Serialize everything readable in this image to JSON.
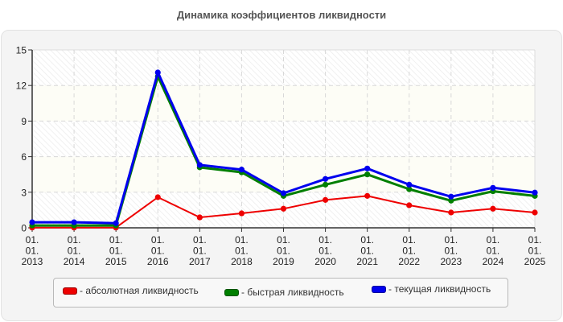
{
  "title": "Динамика коэффициентов ликвидности",
  "legend": {
    "items": [
      {
        "label": "- абсолютная ликвидность",
        "color": "#ee0000"
      },
      {
        "label": "- быстрая ликвидность",
        "color": "#007f00"
      },
      {
        "label": "- текущая ликвидность",
        "color": "#0000ee"
      }
    ]
  },
  "chart_data": {
    "type": "line",
    "title": "Динамика коэффициентов ликвидности",
    "xlabel": "",
    "ylabel": "",
    "ylim": [
      0,
      15
    ],
    "yticks": [
      0,
      3,
      6,
      9,
      12,
      15
    ],
    "grid": true,
    "legend_position": "bottom",
    "categories": [
      "01.01.2013",
      "01.01.2014",
      "01.01.2015",
      "01.01.2016",
      "01.01.2017",
      "01.01.2018",
      "01.01.2019",
      "01.01.2020",
      "01.01.2021",
      "01.01.2022",
      "01.01.2023",
      "01.01.2024",
      "01.01.2025"
    ],
    "category_lines": [
      [
        "01.",
        "01.",
        "2013"
      ],
      [
        "01.",
        "01.",
        "2014"
      ],
      [
        "01.",
        "01.",
        "2015"
      ],
      [
        "01.",
        "01.",
        "2016"
      ],
      [
        "01.",
        "01.",
        "2017"
      ],
      [
        "01.",
        "01.",
        "2018"
      ],
      [
        "01.",
        "01.",
        "2019"
      ],
      [
        "01.",
        "01.",
        "2020"
      ],
      [
        "01.",
        "01.",
        "2021"
      ],
      [
        "01.",
        "01.",
        "2022"
      ],
      [
        "01.",
        "01.",
        "2023"
      ],
      [
        "01.",
        "01.",
        "2024"
      ],
      [
        "01.",
        "01.",
        "2025"
      ]
    ],
    "series": [
      {
        "name": "абсолютная ликвидность",
        "color": "#ee0000",
        "width": 2,
        "values": [
          0.02,
          0.02,
          0.02,
          2.58,
          0.88,
          1.22,
          1.61,
          2.35,
          2.69,
          1.9,
          1.29,
          1.61,
          1.29
        ]
      },
      {
        "name": "быстрая ликвидность",
        "color": "#007f00",
        "width": 3,
        "values": [
          0.2,
          0.2,
          0.2,
          12.76,
          5.1,
          4.68,
          2.69,
          3.64,
          4.5,
          3.26,
          2.29,
          3.08,
          2.69
        ]
      },
      {
        "name": "текущая ликвидность",
        "color": "#0000ee",
        "width": 3,
        "values": [
          0.47,
          0.47,
          0.39,
          13.1,
          5.3,
          4.91,
          2.92,
          4.12,
          5.0,
          3.64,
          2.63,
          3.37,
          2.97
        ]
      }
    ]
  }
}
